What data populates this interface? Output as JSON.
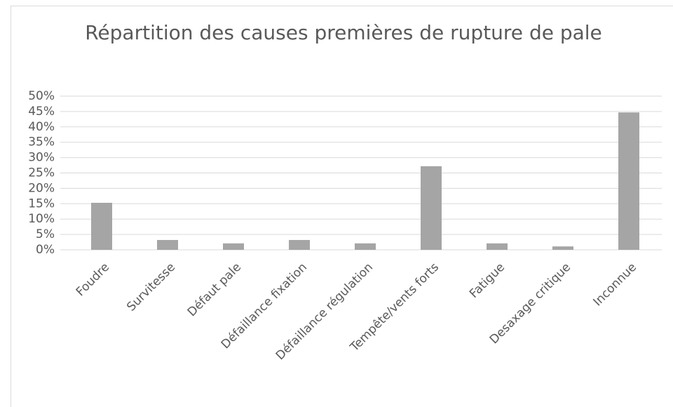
{
  "chart_data": {
    "type": "bar",
    "title": "Répartition des causes premières de rupture de pale",
    "categories": [
      "Foudre",
      "Survitesse",
      "Défaut pale",
      "Défaillance fixation",
      "Défaillance régulation",
      "Tempête/vents forts",
      "Fatigue",
      "Desaxage critique",
      "Inconnue"
    ],
    "values": [
      15.3,
      3.2,
      2.1,
      3.2,
      2.1,
      27.2,
      2.1,
      1.1,
      44.7
    ],
    "color": "#a5a5a5",
    "ylim": [
      0,
      50
    ],
    "yticks": [
      {
        "value": 0,
        "label": "0%"
      },
      {
        "value": 5,
        "label": "5%"
      },
      {
        "value": 10,
        "label": "10%"
      },
      {
        "value": 15,
        "label": "15%"
      },
      {
        "value": 20,
        "label": "20%"
      },
      {
        "value": 25,
        "label": "25%"
      },
      {
        "value": 30,
        "label": "30%"
      },
      {
        "value": 35,
        "label": "35%"
      },
      {
        "value": 40,
        "label": "40%"
      },
      {
        "value": 45,
        "label": "45%"
      },
      {
        "value": 50,
        "label": "50%"
      }
    ],
    "grid": true
  }
}
